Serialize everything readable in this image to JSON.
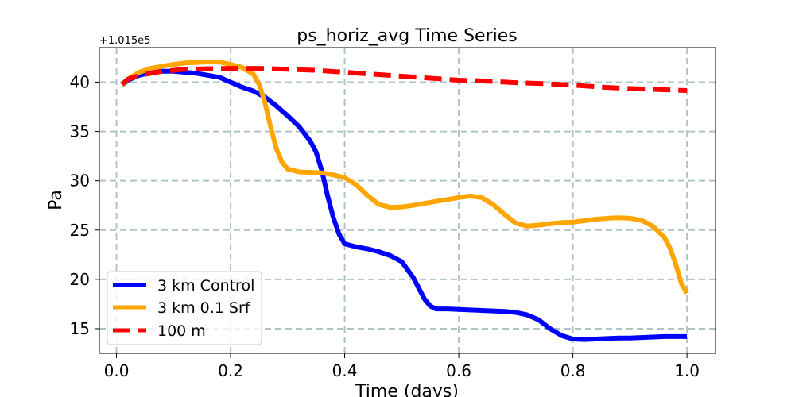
{
  "chart_data": {
    "type": "line",
    "title": "ps_horiz_avg Time Series",
    "xlabel": "Time (days)",
    "ylabel": "Pa",
    "y_offset_text": "+1.015e5",
    "xlim": [
      -0.03,
      1.05
    ],
    "ylim": [
      12.5,
      43.5
    ],
    "grid": true,
    "legend_position": "lower-left",
    "x_ticks": [
      0.0,
      0.2,
      0.4,
      0.6,
      0.8,
      1.0
    ],
    "x_tick_labels": [
      "0.0",
      "0.2",
      "0.4",
      "0.6",
      "0.8",
      "1.0"
    ],
    "y_ticks": [
      15,
      20,
      25,
      30,
      35,
      40
    ],
    "y_tick_labels": [
      "15",
      "20",
      "25",
      "30",
      "35",
      "40"
    ],
    "series": [
      {
        "name": "3 km Control",
        "color": "#0000ff",
        "style": "solid",
        "x": [
          0.01,
          0.02,
          0.04,
          0.06,
          0.08,
          0.1,
          0.12,
          0.14,
          0.16,
          0.18,
          0.2,
          0.22,
          0.24,
          0.26,
          0.28,
          0.3,
          0.32,
          0.34,
          0.35,
          0.36,
          0.37,
          0.38,
          0.39,
          0.4,
          0.42,
          0.44,
          0.46,
          0.48,
          0.5,
          0.52,
          0.54,
          0.55,
          0.56,
          0.58,
          0.6,
          0.62,
          0.64,
          0.66,
          0.68,
          0.7,
          0.72,
          0.74,
          0.76,
          0.78,
          0.8,
          0.82,
          0.84,
          0.86,
          0.88,
          0.9,
          0.92,
          0.94,
          0.96,
          0.98,
          1.0
        ],
        "values": [
          39.7,
          40.2,
          40.7,
          41.0,
          41.1,
          41.1,
          41.0,
          40.9,
          40.7,
          40.5,
          40.0,
          39.5,
          39.1,
          38.5,
          37.6,
          36.6,
          35.5,
          34.0,
          32.9,
          31.0,
          28.5,
          26.3,
          24.6,
          23.6,
          23.3,
          23.1,
          22.8,
          22.4,
          21.8,
          20.2,
          18.0,
          17.3,
          17.0,
          17.0,
          16.95,
          16.9,
          16.85,
          16.8,
          16.75,
          16.65,
          16.4,
          15.9,
          15.0,
          14.3,
          13.95,
          13.9,
          13.95,
          14.0,
          14.05,
          14.05,
          14.1,
          14.15,
          14.2,
          14.2,
          14.2
        ]
      },
      {
        "name": "3 km 0.1 Srf",
        "color": "#ffa500",
        "style": "solid",
        "x": [
          0.01,
          0.02,
          0.04,
          0.06,
          0.08,
          0.1,
          0.12,
          0.14,
          0.16,
          0.18,
          0.2,
          0.22,
          0.24,
          0.25,
          0.26,
          0.27,
          0.28,
          0.29,
          0.3,
          0.32,
          0.34,
          0.36,
          0.38,
          0.4,
          0.42,
          0.44,
          0.46,
          0.48,
          0.5,
          0.52,
          0.54,
          0.56,
          0.58,
          0.6,
          0.62,
          0.64,
          0.66,
          0.68,
          0.7,
          0.72,
          0.74,
          0.76,
          0.78,
          0.8,
          0.82,
          0.84,
          0.86,
          0.88,
          0.9,
          0.92,
          0.94,
          0.96,
          0.97,
          0.98,
          0.99,
          1.0
        ],
        "values": [
          39.7,
          40.3,
          41.0,
          41.4,
          41.6,
          41.8,
          41.95,
          42.0,
          42.05,
          42.05,
          41.8,
          41.5,
          40.8,
          39.8,
          38.0,
          35.5,
          33.3,
          31.9,
          31.2,
          30.9,
          30.85,
          30.8,
          30.6,
          30.3,
          29.6,
          28.5,
          27.6,
          27.3,
          27.35,
          27.5,
          27.7,
          27.9,
          28.1,
          28.3,
          28.45,
          28.3,
          27.6,
          26.6,
          25.7,
          25.4,
          25.5,
          25.65,
          25.75,
          25.8,
          25.95,
          26.1,
          26.2,
          26.25,
          26.2,
          26.0,
          25.4,
          24.3,
          23.2,
          21.6,
          19.6,
          18.6
        ]
      },
      {
        "name": "100 m",
        "color": "#ff0000",
        "style": "dashed",
        "x": [
          0.01,
          0.02,
          0.04,
          0.06,
          0.08,
          0.1,
          0.12,
          0.15,
          0.2,
          0.25,
          0.3,
          0.35,
          0.4,
          0.45,
          0.5,
          0.55,
          0.6,
          0.65,
          0.7,
          0.75,
          0.8,
          0.85,
          0.9,
          0.95,
          1.0
        ],
        "values": [
          39.8,
          40.3,
          40.7,
          40.9,
          41.1,
          41.2,
          41.3,
          41.35,
          41.4,
          41.4,
          41.3,
          41.2,
          41.0,
          40.8,
          40.6,
          40.4,
          40.2,
          40.1,
          39.95,
          39.85,
          39.7,
          39.5,
          39.35,
          39.25,
          39.15
        ]
      }
    ]
  }
}
